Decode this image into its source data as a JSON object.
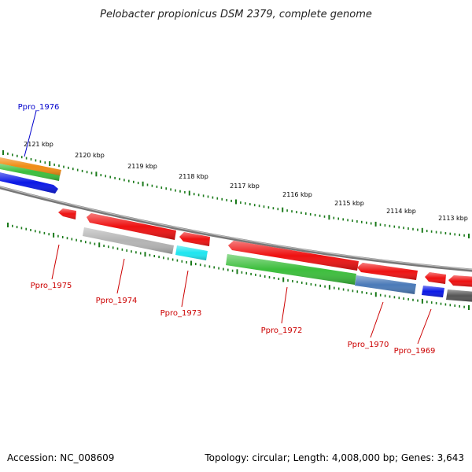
{
  "title": "Pelobacter propionicus DSM 2379, complete genome",
  "accession_label": "Accession: NC_008609",
  "summary_label": "Topology: circular; Length: 4,008,000 bp; Genes: 3,643",
  "colors": {
    "background": "#ffffff",
    "backbone": "#888888",
    "tick": "#1a7a1a",
    "label_forward": "#0000cc",
    "label_reverse": "#cc0000"
  },
  "axis": {
    "unit": "kbp",
    "ticks": [
      {
        "label": "2121 kbp"
      },
      {
        "label": "2120 kbp"
      },
      {
        "label": "2119 kbp"
      },
      {
        "label": "2118 kbp"
      },
      {
        "label": "2117 kbp"
      },
      {
        "label": "2116 kbp"
      },
      {
        "label": "2115 kbp"
      },
      {
        "label": "2114 kbp"
      },
      {
        "label": "2113 kbp"
      }
    ]
  },
  "genes": [
    {
      "name": "Ppro_1976",
      "strand": "forward",
      "color": "#0a18e6"
    },
    {
      "name": "Ppro_1975",
      "strand": "reverse",
      "color": "#ee1111"
    },
    {
      "name": "Ppro_1974",
      "strand": "reverse",
      "color": "#b4b4b4"
    },
    {
      "name": "Ppro_1973",
      "strand": "reverse",
      "color": "#1ee6f0"
    },
    {
      "name": "Ppro_1972",
      "strand": "reverse",
      "color": "#3cbe3c"
    },
    {
      "name": "Ppro_1970",
      "strand": "reverse",
      "color": "#4a7ab8"
    },
    {
      "name": "Ppro_1969",
      "strand": "reverse",
      "color": "#0a18e6"
    }
  ]
}
